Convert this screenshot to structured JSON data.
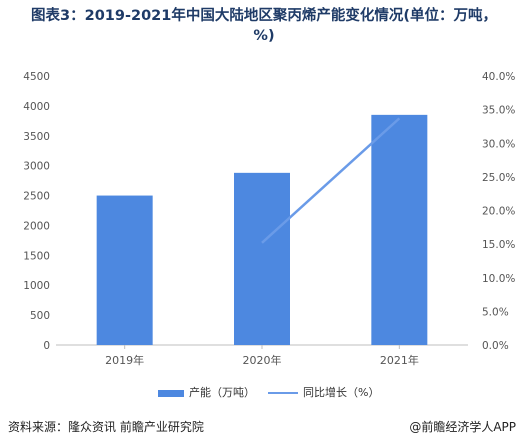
{
  "title": "图表3：2019-2021年中国大陆地区聚丙烯产能变化情况(单位：万吨，%)",
  "source": "资料来源：隆众资讯 前瞻产业研究院",
  "brand": "@前瞻经济学人APP",
  "colors": {
    "bar": "#4d88e0",
    "line": "#6a9be8",
    "axis_text": "#555555",
    "title": "#1f3b67"
  },
  "chart_data": {
    "type": "bar",
    "categories": [
      "2019年",
      "2020年",
      "2021年"
    ],
    "series": [
      {
        "name": "产能（万吨）",
        "type": "bar",
        "axis": "left",
        "values": [
          2500,
          2880,
          3850
        ]
      },
      {
        "name": "同比增长（%）",
        "type": "line",
        "axis": "right",
        "values": [
          null,
          15.2,
          33.7
        ]
      }
    ],
    "left_axis": {
      "ticks": [
        "0",
        "500",
        "1000",
        "1500",
        "2000",
        "2500",
        "3000",
        "3500",
        "4000",
        "4500"
      ],
      "ylim": [
        0,
        4500
      ]
    },
    "right_axis": {
      "ticks": [
        "0.0%",
        "5.0%",
        "10.0%",
        "15.0%",
        "20.0%",
        "25.0%",
        "30.0%",
        "35.0%",
        "40.0%"
      ],
      "ylim": [
        0,
        40
      ]
    },
    "legend_position": "bottom-center",
    "grid": false
  }
}
